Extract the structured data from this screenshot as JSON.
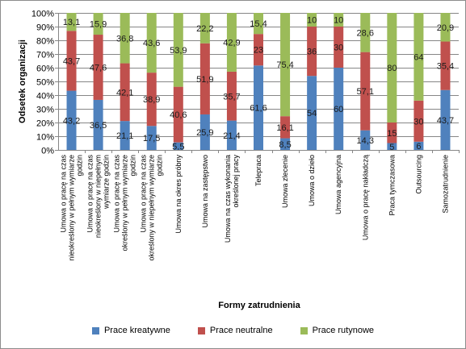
{
  "chart_data": {
    "type": "bar",
    "stacked": true,
    "xlabel": "Formy zatrudnienia",
    "ylabel": "Odsetek organizacji",
    "ylim": [
      0,
      100
    ],
    "yticks": [
      "0%",
      "10%",
      "20%",
      "30%",
      "40%",
      "50%",
      "60%",
      "70%",
      "80%",
      "90%",
      "100%"
    ],
    "grid": true,
    "legend_position": "bottom",
    "categories": [
      "Umowa o pracę na czas nieokreślony w pełnym wymiarze godzin",
      "Umowa o pracę na czas nieokreślony w niepełnym wymiarze godzin",
      "Umowa o pracę na czas określony w pełnym wymiarze godzin",
      "Umowa o pracę na czas określony w niepełnym wymiarze godzin",
      "Umowa na okres próbny",
      "Umowa na zastępstwo",
      "Umowa na czas wykonania określonej pracy",
      "Telepraca",
      "Umowa zlecenie",
      "Umowa o dzieło",
      "Umowa agencyjna",
      "Umowa o pracę nakładczą",
      "Praca tymczasowa",
      "Outsourcing",
      "Samozatrudnienie"
    ],
    "series": [
      {
        "name": "Prace kreatywne",
        "color": "#4f81bd",
        "values": [
          43.2,
          36.5,
          21.1,
          17.5,
          5.5,
          25.9,
          21.4,
          61.6,
          8.5,
          54,
          60,
          14.3,
          5,
          6,
          43.7
        ]
      },
      {
        "name": "Prace neutralne",
        "color": "#c0504d",
        "values": [
          43.7,
          47.6,
          42.1,
          38.9,
          40.6,
          51.9,
          35.7,
          23,
          16.1,
          36,
          30,
          57.1,
          15,
          30,
          35.4
        ]
      },
      {
        "name": "Prace rutynowe",
        "color": "#9bbb59",
        "values": [
          13.1,
          15.9,
          36.8,
          43.6,
          53.9,
          22.2,
          42.9,
          15.4,
          75.4,
          10,
          10,
          28.6,
          80,
          64,
          20.9
        ]
      }
    ],
    "data_labels": [
      [
        "43,2",
        "36,5",
        "21,1",
        "17,5",
        "5,5",
        "25,9",
        "21,4",
        "61,6",
        "8,5",
        "54",
        "60",
        "14,3",
        "5",
        "6",
        "43,7"
      ],
      [
        "43,7",
        "47,6",
        "42,1",
        "38,9",
        "40,6",
        "51,9",
        "35,7",
        "23",
        "16,1",
        "36",
        "30",
        "57,1",
        "15",
        "30",
        "35,4"
      ],
      [
        "13,1",
        "15,9",
        "36,8",
        "43,6",
        "53,9",
        "22,2",
        "42,9",
        "15,4",
        "75,4",
        "10",
        "10",
        "28,6",
        "80",
        "64",
        "20,9"
      ]
    ]
  }
}
